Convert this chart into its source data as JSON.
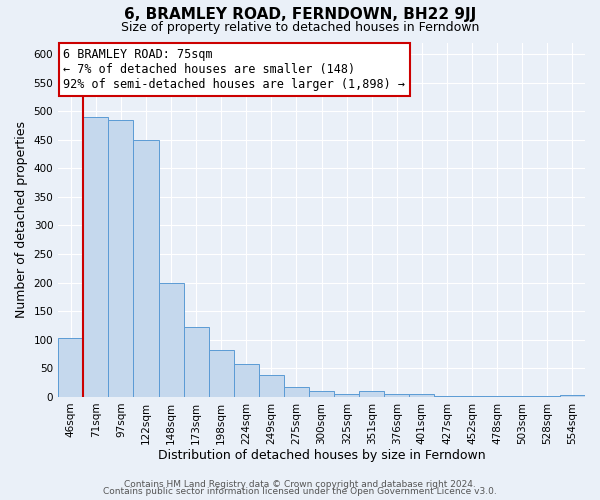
{
  "title": "6, BRAMLEY ROAD, FERNDOWN, BH22 9JJ",
  "subtitle": "Size of property relative to detached houses in Ferndown",
  "xlabel": "Distribution of detached houses by size in Ferndown",
  "ylabel": "Number of detached properties",
  "bin_labels": [
    "46sqm",
    "71sqm",
    "97sqm",
    "122sqm",
    "148sqm",
    "173sqm",
    "198sqm",
    "224sqm",
    "249sqm",
    "275sqm",
    "300sqm",
    "325sqm",
    "351sqm",
    "376sqm",
    "401sqm",
    "427sqm",
    "452sqm",
    "478sqm",
    "503sqm",
    "528sqm",
    "554sqm"
  ],
  "bar_values": [
    103,
    490,
    485,
    450,
    200,
    122,
    82,
    58,
    38,
    17,
    10,
    5,
    10,
    5,
    5,
    2,
    2,
    2,
    1,
    1,
    4
  ],
  "bar_color": "#c5d8ed",
  "bar_edge_color": "#5b9bd5",
  "vline_index": 1,
  "vline_color": "#cc0000",
  "annotation_line1": "6 BRAMLEY ROAD: 75sqm",
  "annotation_line2": "← 7% of detached houses are smaller (148)",
  "annotation_line3": "92% of semi-detached houses are larger (1,898) →",
  "annotation_box_edge": "#cc0000",
  "ylim": [
    0,
    620
  ],
  "yticks": [
    0,
    50,
    100,
    150,
    200,
    250,
    300,
    350,
    400,
    450,
    500,
    550,
    600
  ],
  "footer_line1": "Contains HM Land Registry data © Crown copyright and database right 2024.",
  "footer_line2": "Contains public sector information licensed under the Open Government Licence v3.0.",
  "bg_color": "#eaf0f8",
  "title_fontsize": 11,
  "subtitle_fontsize": 9,
  "axis_label_fontsize": 9,
  "tick_fontsize": 7.5,
  "annotation_fontsize": 8.5,
  "footer_fontsize": 6.5
}
